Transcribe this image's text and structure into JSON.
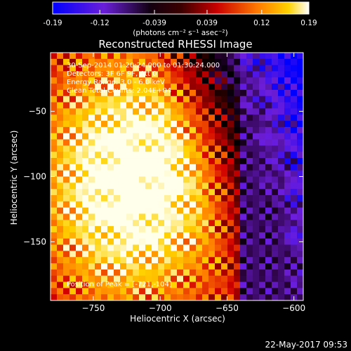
{
  "colorbar": {
    "ticks": [
      "-0.19",
      "-0.12",
      "-0.039",
      "0.039",
      "0.12",
      "0.19"
    ],
    "tick_values": [
      -0.19,
      -0.12,
      -0.039,
      0.039,
      0.12,
      0.19
    ],
    "range": [
      -0.19,
      0.19
    ],
    "units": "(photons cm⁻² s⁻¹ asec⁻²)"
  },
  "chart_data": {
    "type": "heatmap",
    "title": "Reconstructed RHESSI Image",
    "xlabel": "Heliocentric X (arcsec)",
    "ylabel": "Heliocentric Y (arcsec)",
    "xlim": [
      -782,
      -593
    ],
    "ylim": [
      -195,
      -5
    ],
    "x_ticks": [
      -750,
      -700,
      -650,
      -600
    ],
    "y_ticks": [
      -50,
      -100,
      -150
    ],
    "x_tick_labels": [
      "−750",
      "−700",
      "−650",
      "−600"
    ],
    "y_tick_labels": [
      "−50",
      "−100",
      "−150"
    ],
    "info_lines": [
      "30-Sep-2014 01:20:24.000 to 01:30:24.000",
      "Detectors: 3F 6F 9F, Att 0",
      "Energy Range: 3.0 - 6.0 keV",
      "Clean     Total Counts: 2.04E+04"
    ],
    "peak_label": "Position of Peak = [-721,-104]",
    "peak": [
      -721,
      -104
    ],
    "value_range": [
      -0.19,
      0.19
    ],
    "colormap": [
      "#0000ff",
      "#8a2be2",
      "#000000",
      "#8b0000",
      "#ff0000",
      "#ff8c00",
      "#ffff00",
      "#ffffff"
    ]
  },
  "footer": {
    "date": "22-May-2017 09:53"
  }
}
